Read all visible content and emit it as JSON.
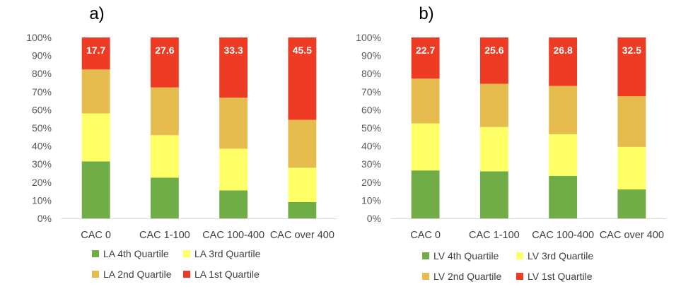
{
  "chart_data": [
    {
      "type": "bar",
      "stacked": true,
      "percent_stacked": true,
      "panel_label": "a)",
      "categories": [
        "CAC 0",
        "CAC 1-100",
        "CAC 100-400",
        "CAC over 400"
      ],
      "ylim": [
        0,
        100
      ],
      "yticks": [
        "0%",
        "10%",
        "20%",
        "30%",
        "40%",
        "50%",
        "60%",
        "70%",
        "80%",
        "90%",
        "100%"
      ],
      "grid": false,
      "legend_position": "bottom",
      "series": [
        {
          "name": "LA 4th Quartile",
          "color": "#70ad47",
          "values": [
            31.5,
            22.5,
            15.5,
            9
          ]
        },
        {
          "name": "LA 3rd Quartile",
          "color": "#ffff66",
          "values": [
            26.5,
            23.5,
            23,
            19
          ]
        },
        {
          "name": "LA 2nd Quartile",
          "color": "#e6bc4e",
          "values": [
            24.3,
            26.4,
            28.2,
            26.5
          ]
        },
        {
          "name": "LA 1st Quartile",
          "color": "#ed3b24",
          "values": [
            17.7,
            27.6,
            33.3,
            45.5
          ],
          "data_labels": [
            "17.7",
            "27.6",
            "33.3",
            "45.5"
          ]
        }
      ]
    },
    {
      "type": "bar",
      "stacked": true,
      "percent_stacked": true,
      "panel_label": "b)",
      "categories": [
        "CAC 0",
        "CAC 1-100",
        "CAC 100-400",
        "CAC over 400"
      ],
      "ylim": [
        0,
        100
      ],
      "yticks": [
        "0%",
        "10%",
        "20%",
        "30%",
        "40%",
        "50%",
        "60%",
        "70%",
        "80%",
        "90%",
        "100%"
      ],
      "grid": false,
      "legend_position": "bottom",
      "series": [
        {
          "name": "LV 4th Quartile",
          "color": "#70ad47",
          "values": [
            26.5,
            26,
            23.5,
            16
          ]
        },
        {
          "name": "LV 3rd Quartile",
          "color": "#ffff66",
          "values": [
            26,
            24.5,
            23,
            23.5
          ]
        },
        {
          "name": "LV 2nd Quartile",
          "color": "#e6bc4e",
          "values": [
            24.8,
            23.9,
            26.7,
            28
          ]
        },
        {
          "name": "LV 1st Quartile",
          "color": "#ed3b24",
          "values": [
            22.7,
            25.6,
            26.8,
            32.5
          ],
          "data_labels": [
            "22.7",
            "25.6",
            "26.8",
            "32.5"
          ]
        }
      ]
    }
  ]
}
